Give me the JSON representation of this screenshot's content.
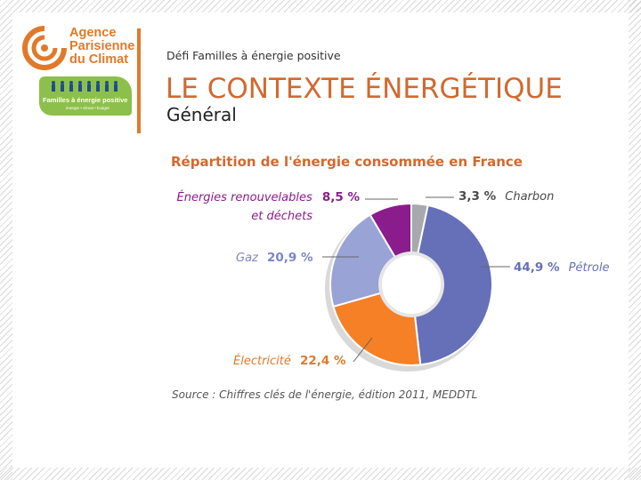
{
  "header": {
    "logo_lines": [
      "Agence",
      "Parisienne",
      "du Climat"
    ],
    "badge_title": "Familles à énergie positive",
    "badge_sub": "énergie • climat • budget",
    "subtitle": "Défi Familles à énergie positive",
    "title": "LE CONTEXTE ÉNERGÉTIQUE",
    "section": "Général"
  },
  "colors": {
    "orange": "#d2692f",
    "charbon": "#a7a9ac",
    "petrole": "#6670b8",
    "electricite": "#f58025",
    "gaz": "#99a3d6",
    "renouvelables": "#8b1c8c"
  },
  "chart_data": {
    "type": "pie",
    "style": "donut",
    "title": "Répartition de l'énergie consommée en France",
    "slices": [
      {
        "label": "Charbon",
        "value": 3.3,
        "value_label": "3,3 %",
        "color_key": "charbon"
      },
      {
        "label": "Pétrole",
        "value": 44.9,
        "value_label": "44,9 %",
        "color_key": "petrole"
      },
      {
        "label": "Électricité",
        "value": 22.4,
        "value_label": "22,4 %",
        "color_key": "electricite"
      },
      {
        "label": "Gaz",
        "value": 20.9,
        "value_label": "20,9 %",
        "color_key": "gaz"
      },
      {
        "label_lines": [
          "Énergies renouvelables",
          "et déchets"
        ],
        "label": "Énergies renouvelables et déchets",
        "value": 8.5,
        "value_label": "8,5 %",
        "color_key": "renouvelables"
      }
    ],
    "source": "Source : Chiffres clés de l'énergie, édition 2011, MEDDTL"
  }
}
